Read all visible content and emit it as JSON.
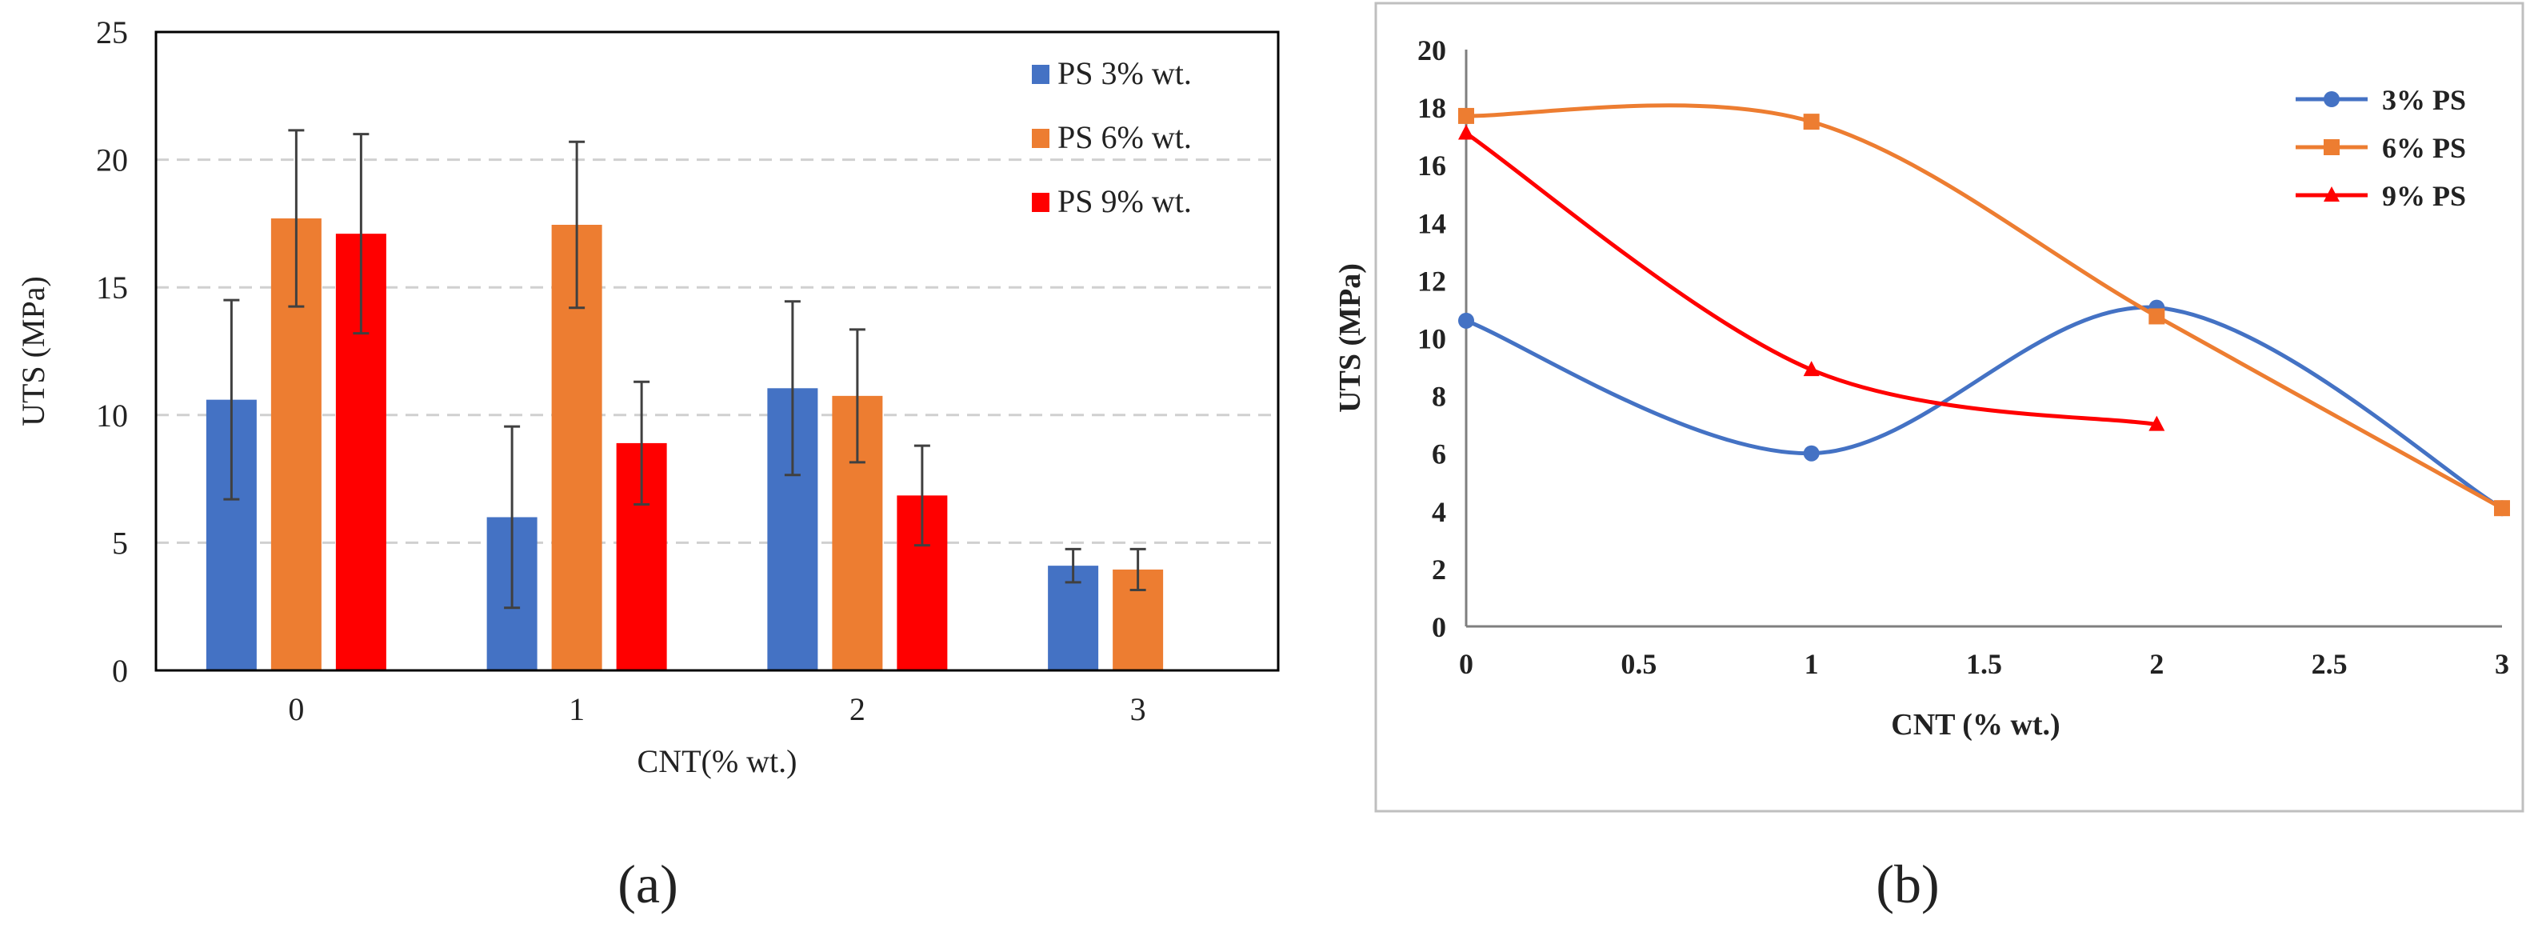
{
  "chart_data": [
    {
      "type": "bar",
      "panel_label": "(a)",
      "categories": [
        "0",
        "1",
        "2",
        "3"
      ],
      "series": [
        {
          "name": "PS 3% wt.",
          "color": "#4472C4",
          "values": [
            10.6,
            6.0,
            11.05,
            4.1
          ],
          "errors": [
            3.9,
            3.55,
            3.4,
            0.65
          ]
        },
        {
          "name": "PS 6% wt.",
          "color": "#ED7D31",
          "values": [
            17.7,
            17.45,
            10.75,
            3.95
          ],
          "errors": [
            3.45,
            3.25,
            2.6,
            0.8
          ]
        },
        {
          "name": "PS 9% wt.",
          "color": "#FF0000",
          "values": [
            17.1,
            8.9,
            6.85,
            null
          ],
          "errors": [
            3.9,
            2.4,
            1.95,
            null
          ]
        }
      ],
      "xlabel": "CNT(% wt.)",
      "ylabel": "UTS (MPa)",
      "ylim": [
        0,
        25
      ],
      "yticks": [
        "0",
        "5",
        "10",
        "15",
        "20",
        "25"
      ],
      "grid": true,
      "legend": "top-right"
    },
    {
      "type": "line",
      "panel_label": "(b)",
      "series": [
        {
          "name": "3% PS",
          "color": "#4472C4",
          "marker": "circle",
          "x": [
            0,
            1,
            2,
            3
          ],
          "y": [
            10.6,
            6.0,
            11.05,
            4.1
          ]
        },
        {
          "name": "6% PS",
          "color": "#ED7D31",
          "marker": "square",
          "x": [
            0,
            1,
            2,
            3
          ],
          "y": [
            17.7,
            17.5,
            10.75,
            4.1
          ]
        },
        {
          "name": "9% PS",
          "color": "#FF0000",
          "marker": "triangle",
          "x": [
            0,
            1,
            2
          ],
          "y": [
            17.1,
            8.9,
            7.0
          ]
        }
      ],
      "xlabel": "CNT (% wt.)",
      "ylabel": "UTS (MPa)",
      "xlim": [
        0,
        3
      ],
      "ylim": [
        0,
        20
      ],
      "xticks": [
        "0",
        "0.5",
        "1",
        "1.5",
        "2",
        "2.5",
        "3"
      ],
      "yticks": [
        "0",
        "2",
        "4",
        "6",
        "8",
        "10",
        "12",
        "14",
        "16",
        "18",
        "20"
      ],
      "grid": false,
      "legend": "top-right"
    }
  ]
}
